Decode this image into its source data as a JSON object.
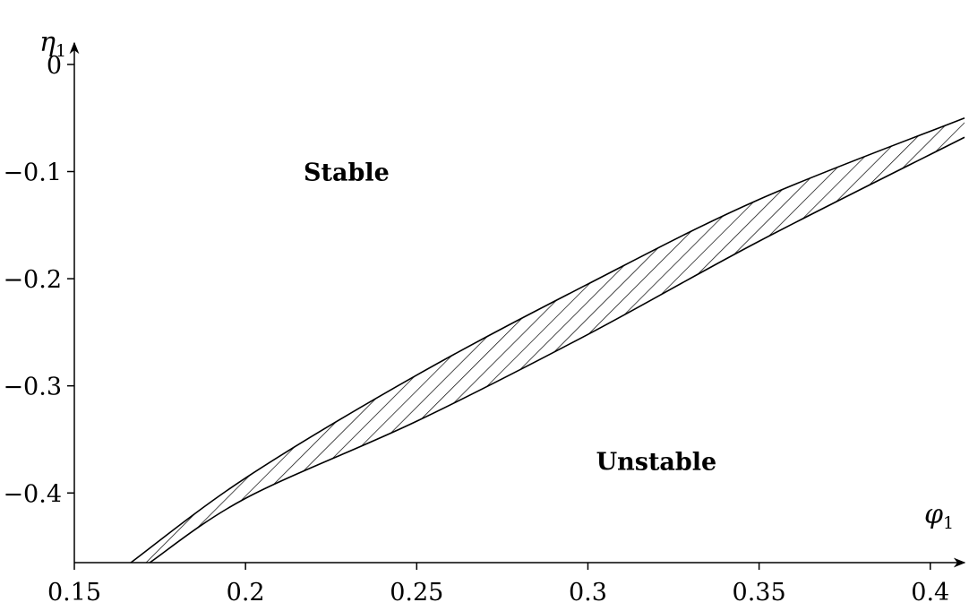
{
  "chart_data": {
    "type": "area",
    "xlabel": "φ",
    "xlabel_sub": "1",
    "ylabel": "η",
    "ylabel_sub": "1",
    "xlim": [
      0.15,
      0.41
    ],
    "ylim": [
      -0.465,
      0.02
    ],
    "x_ticks": [
      0.15,
      0.2,
      0.25,
      0.3,
      0.35,
      0.4
    ],
    "x_tick_labels": [
      "0.15",
      "0.2",
      "0.25",
      "0.3",
      "0.35",
      "0.4"
    ],
    "y_ticks": [
      0,
      -0.1,
      -0.2,
      -0.3,
      -0.4
    ],
    "y_tick_labels": [
      "0",
      "−0.1",
      "−0.2",
      "−0.3",
      "−0.4"
    ],
    "grid": false,
    "fill": "hatched",
    "series": [
      {
        "role": "upper-boundary",
        "x": [
          0.1665,
          0.2,
          0.25,
          0.3,
          0.35,
          0.41
        ],
        "y": [
          -0.465,
          -0.386,
          -0.29,
          -0.205,
          -0.126,
          -0.05
        ]
      },
      {
        "role": "lower-boundary",
        "x": [
          0.172,
          0.2,
          0.25,
          0.3,
          0.35,
          0.41
        ],
        "y": [
          -0.465,
          -0.405,
          -0.333,
          -0.252,
          -0.165,
          -0.068
        ]
      }
    ],
    "annotations": [
      {
        "text": "Stable",
        "x": 0.2295,
        "y": -0.1
      },
      {
        "text": "Unstable",
        "x": 0.32,
        "y": -0.37
      }
    ]
  }
}
